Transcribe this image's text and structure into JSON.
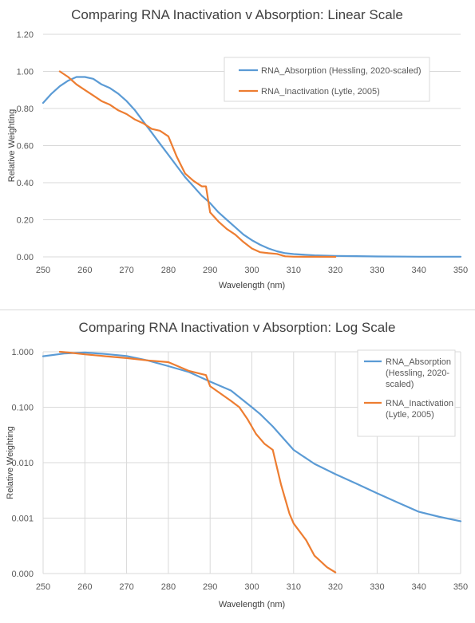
{
  "chart_data": [
    {
      "type": "line",
      "title": "Comparing RNA Inactivation v Absorption: Linear Scale",
      "xlabel": "Wavelength (nm)",
      "ylabel": "Relative Weighting",
      "xlim": [
        250,
        350
      ],
      "ylim": [
        0,
        1.2
      ],
      "x_ticks": [
        250,
        260,
        270,
        280,
        290,
        300,
        310,
        320,
        330,
        340,
        350
      ],
      "x_tick_labels": [
        "250",
        "260",
        "270",
        "280",
        "290",
        "300",
        "310",
        "320",
        "330",
        "340",
        "350"
      ],
      "y_ticks": [
        0,
        0.2,
        0.4,
        0.6,
        0.8,
        1.0,
        1.2
      ],
      "y_tick_labels": [
        "0.00",
        "0.20",
        "0.40",
        "0.60",
        "0.80",
        "1.00",
        "1.20"
      ],
      "y_scale": "linear",
      "grid": true,
      "legend_position": "top-right",
      "legend": [
        "RNA_Absorption (Hessling, 2020-scaled)",
        "RNA_Inactivation (Lytle, 2005)"
      ],
      "series": [
        {
          "name": "RNA_Absorption (Hessling, 2020-scaled)",
          "color": "#5b9bd5",
          "x": [
            250,
            252,
            254,
            256,
            258,
            260,
            262,
            264,
            266,
            268,
            270,
            272,
            274,
            276,
            278,
            280,
            282,
            284,
            286,
            288,
            290,
            292,
            294,
            296,
            298,
            300,
            302,
            304,
            306,
            308,
            310,
            315,
            320,
            325,
            330,
            340,
            350
          ],
          "y": [
            0.83,
            0.88,
            0.92,
            0.95,
            0.97,
            0.97,
            0.96,
            0.93,
            0.91,
            0.88,
            0.84,
            0.79,
            0.73,
            0.67,
            0.61,
            0.55,
            0.49,
            0.43,
            0.38,
            0.33,
            0.29,
            0.24,
            0.2,
            0.16,
            0.12,
            0.09,
            0.065,
            0.045,
            0.03,
            0.02,
            0.015,
            0.008,
            0.005,
            0.004,
            0.002,
            0.001,
            0.001
          ]
        },
        {
          "name": "RNA_Inactivation (Lytle, 2005)",
          "color": "#ed7d31",
          "x": [
            254,
            256,
            258,
            260,
            262,
            264,
            266,
            268,
            270,
            272,
            274,
            276,
            278,
            280,
            282,
            284,
            286,
            288,
            289,
            290,
            292,
            294,
            296,
            298,
            300,
            302,
            304,
            306,
            308,
            310,
            315,
            320
          ],
          "y": [
            1.0,
            0.97,
            0.93,
            0.9,
            0.87,
            0.84,
            0.82,
            0.79,
            0.77,
            0.74,
            0.72,
            0.69,
            0.68,
            0.65,
            0.54,
            0.45,
            0.41,
            0.38,
            0.38,
            0.24,
            0.19,
            0.15,
            0.12,
            0.08,
            0.045,
            0.025,
            0.02,
            0.016,
            0.003,
            0.0008,
            0.0003,
            5e-05
          ]
        }
      ]
    },
    {
      "type": "line",
      "title": "Comparing RNA Inactivation v Absorption: Log Scale",
      "xlabel": "Wavelength (nm)",
      "ylabel": "Relative Weighting",
      "xlim": [
        250,
        350
      ],
      "ylim": [
        0,
        1.0
      ],
      "x_ticks": [
        250,
        260,
        270,
        280,
        290,
        300,
        310,
        320,
        330,
        340,
        350
      ],
      "x_tick_labels": [
        "250",
        "260",
        "270",
        "280",
        "290",
        "300",
        "310",
        "320",
        "330",
        "340",
        "350"
      ],
      "y_ticks": [
        0.0001,
        0.001,
        0.01,
        0.1,
        1.0
      ],
      "y_tick_labels": [
        "0.000",
        "0.001",
        "0.010",
        "0.100",
        "1.000"
      ],
      "y_scale": "log",
      "grid": true,
      "legend_position": "top-right",
      "legend": [
        "RNA_Absorption (Hessling, 2020-scaled)",
        "RNA_Inactivation (Lytle, 2005)"
      ],
      "legend_lines": [
        [
          "RNA_Absorption",
          "(Hessling, 2020-",
          "scaled)"
        ],
        [
          "RNA_Inactivation",
          "(Lytle, 2005)"
        ]
      ],
      "series": [
        {
          "name": "RNA_Absorption (Hessling, 2020-scaled)",
          "color": "#5b9bd5",
          "x": [
            250,
            255,
            260,
            265,
            270,
            275,
            280,
            285,
            290,
            295,
            300,
            302,
            305,
            310,
            315,
            320,
            325,
            330,
            335,
            340,
            345,
            350
          ],
          "y": [
            0.83,
            0.93,
            0.97,
            0.91,
            0.84,
            0.7,
            0.55,
            0.43,
            0.29,
            0.2,
            0.1,
            0.075,
            0.045,
            0.017,
            0.0095,
            0.0062,
            0.0042,
            0.0028,
            0.0019,
            0.0013,
            0.00105,
            0.00088
          ]
        },
        {
          "name": "RNA_Inactivation (Lytle, 2005)",
          "color": "#ed7d31",
          "x": [
            254,
            256,
            260,
            265,
            270,
            275,
            280,
            285,
            289,
            290,
            295,
            297,
            299,
            301,
            303,
            305,
            307,
            309,
            310,
            313,
            315,
            318,
            320
          ],
          "y": [
            1.0,
            0.97,
            0.9,
            0.83,
            0.77,
            0.7,
            0.65,
            0.45,
            0.38,
            0.24,
            0.13,
            0.1,
            0.06,
            0.033,
            0.022,
            0.017,
            0.004,
            0.0012,
            0.0008,
            0.0004,
            0.00021,
            0.00013,
            0.000105
          ]
        }
      ]
    }
  ]
}
